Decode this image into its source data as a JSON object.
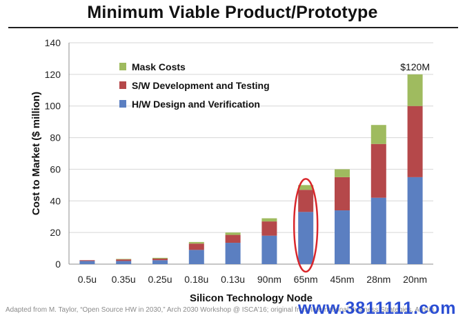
{
  "slide": {
    "title": "Minimum Viable Product/Prototype",
    "footer": "Adapted from M. Taylor, “Open Source HW in 2030,” Arch 2030 Workshop @ ISCA’16; original from International Business Strategies, Austin.",
    "watermark": "www.3811111.com"
  },
  "chart_data": {
    "type": "bar",
    "stacked": true,
    "title": "",
    "xlabel": "Silicon Technology Node",
    "ylabel": "Cost to Market ($ million)",
    "ylim": [
      0,
      140
    ],
    "yticks": [
      0,
      20,
      40,
      60,
      80,
      100,
      120,
      140
    ],
    "grid": true,
    "legend_position": "top-left",
    "categories": [
      "0.5u",
      "0.35u",
      "0.25u",
      "0.18u",
      "0.13u",
      "90nm",
      "65nm",
      "45nm",
      "28nm",
      "20nm"
    ],
    "series": [
      {
        "name": "H/W Design and Verification",
        "color": "#5b7fc1",
        "values": [
          2,
          2,
          2.5,
          9,
          13.5,
          18,
          33,
          34,
          42,
          55
        ]
      },
      {
        "name": "S/W Development and Testing",
        "color": "#b5484a",
        "values": [
          0.5,
          1,
          1,
          4,
          5,
          9,
          14,
          21,
          34,
          45
        ]
      },
      {
        "name": "Mask Costs",
        "color": "#9fbb5f",
        "values": [
          0,
          0.3,
          0.5,
          1,
          1.5,
          2,
          3,
          5,
          12,
          20
        ]
      }
    ],
    "legend_order": [
      "Mask Costs",
      "S/W Development and Testing",
      "H/W Design and Verification"
    ],
    "annotations": [
      {
        "text": "$120M",
        "category": "20nm",
        "value": 120
      }
    ],
    "highlight": {
      "category": "65nm",
      "shape": "ellipse",
      "color": "#d9262b"
    }
  }
}
